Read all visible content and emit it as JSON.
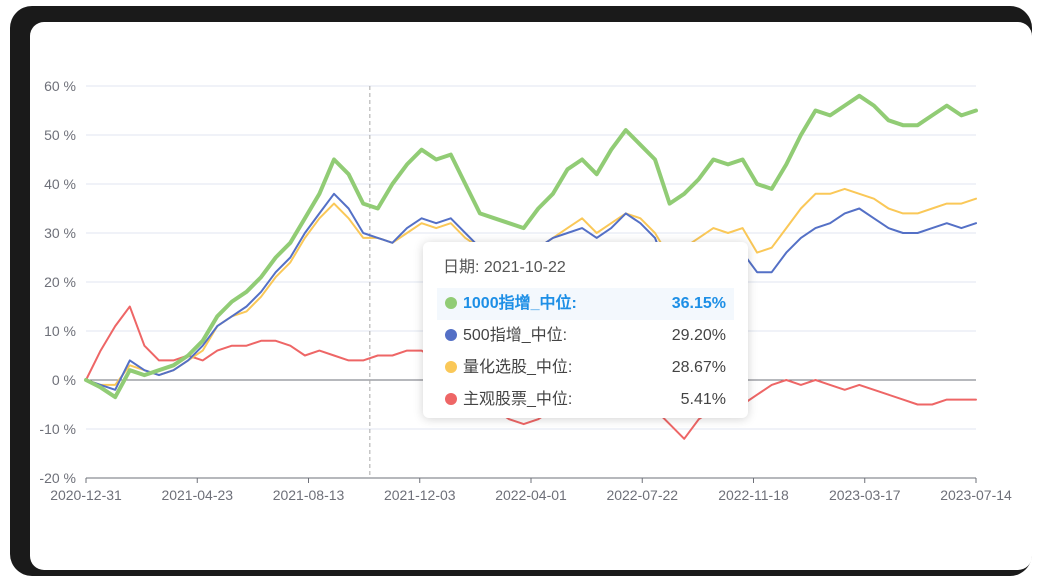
{
  "chart_data": {
    "type": "line",
    "title": "",
    "xlabel": "",
    "ylabel": "",
    "ylim": [
      -20,
      60
    ],
    "y_ticks": [
      "60 %",
      "50 %",
      "40 %",
      "30 %",
      "20 %",
      "10 %",
      "0 %",
      "-10 %",
      "-20 %"
    ],
    "x_tick_labels": [
      "2020-12-31",
      "2021-04-23",
      "2021-08-13",
      "2021-12-03",
      "2022-04-01",
      "2022-07-22",
      "2022-11-18",
      "2023-03-17",
      "2023-07-14"
    ],
    "x_start": "2020-12-31",
    "x_end": "2023-07-14",
    "grid": true,
    "hover_date": "2021-10-22",
    "series": [
      {
        "name": "1000指增_中位",
        "color": "#91cc75",
        "values": [
          0,
          -1.5,
          -3.5,
          2,
          1,
          2,
          3,
          5,
          8,
          13,
          16,
          18,
          21,
          25,
          28,
          33,
          38,
          45,
          42,
          36,
          35,
          40,
          44,
          47,
          45,
          46,
          40,
          34,
          33,
          32,
          31,
          35,
          38,
          43,
          45,
          42,
          47,
          51,
          48,
          45,
          36,
          38,
          41,
          45,
          44,
          45,
          40,
          39,
          44,
          50,
          55,
          54,
          56,
          58,
          56,
          53,
          52,
          52,
          54,
          56,
          54,
          55
        ]
      },
      {
        "name": "500指增_中位",
        "color": "#5470c6",
        "values": [
          0,
          -1,
          -2,
          4,
          2,
          1,
          2,
          4,
          7,
          11,
          13,
          15,
          18,
          22,
          25,
          30,
          34,
          38,
          35,
          30,
          29,
          28,
          31,
          33,
          32,
          33,
          30,
          27,
          26,
          25,
          24,
          27,
          29,
          30,
          31,
          29,
          31,
          34,
          32,
          29,
          21,
          22,
          24,
          27,
          26,
          26,
          22,
          22,
          26,
          29,
          31,
          32,
          34,
          35,
          33,
          31,
          30,
          30,
          31,
          32,
          31,
          32
        ]
      },
      {
        "name": "量化选股_中位",
        "color": "#fac858",
        "values": [
          0,
          -1,
          -1,
          3,
          2,
          1,
          2,
          4,
          6,
          11,
          13,
          14,
          17,
          21,
          24,
          29,
          33,
          36,
          33,
          29,
          29,
          28,
          30,
          32,
          31,
          32,
          29,
          27,
          26,
          25,
          24,
          27,
          29,
          31,
          33,
          30,
          32,
          34,
          33,
          30,
          25,
          27,
          29,
          31,
          30,
          31,
          26,
          27,
          31,
          35,
          38,
          38,
          39,
          38,
          37,
          35,
          34,
          34,
          35,
          36,
          36,
          37
        ]
      },
      {
        "name": "主观股票_中位",
        "color": "#ee6666",
        "values": [
          0,
          6,
          11,
          15,
          7,
          4,
          4,
          5,
          4,
          6,
          7,
          7,
          8,
          8,
          7,
          5,
          6,
          5,
          4,
          4,
          5,
          5,
          6,
          6,
          4,
          2,
          0,
          -4,
          -6,
          -8,
          -9,
          -8,
          -6,
          -5,
          -4,
          -3,
          -2,
          -3,
          -4,
          -6,
          -9,
          -12,
          -8,
          -6,
          -4,
          -5,
          -3,
          -1,
          0,
          -1,
          0,
          -1,
          -2,
          -1,
          -2,
          -3,
          -4,
          -5,
          -5,
          -4,
          -4,
          -4
        ]
      }
    ]
  },
  "tooltip": {
    "date_label": "日期: 2021-10-22",
    "rows": [
      {
        "name": "1000指增_中位:",
        "value": "36.15%",
        "color": "#91cc75",
        "active": true
      },
      {
        "name": "500指增_中位:",
        "value": "29.20%",
        "color": "#5470c6",
        "active": false
      },
      {
        "name": "量化选股_中位:",
        "value": "28.67%",
        "color": "#fac858",
        "active": false
      },
      {
        "name": "主观股票_中位:",
        "value": "5.41%",
        "color": "#ee6666",
        "active": false
      }
    ]
  }
}
